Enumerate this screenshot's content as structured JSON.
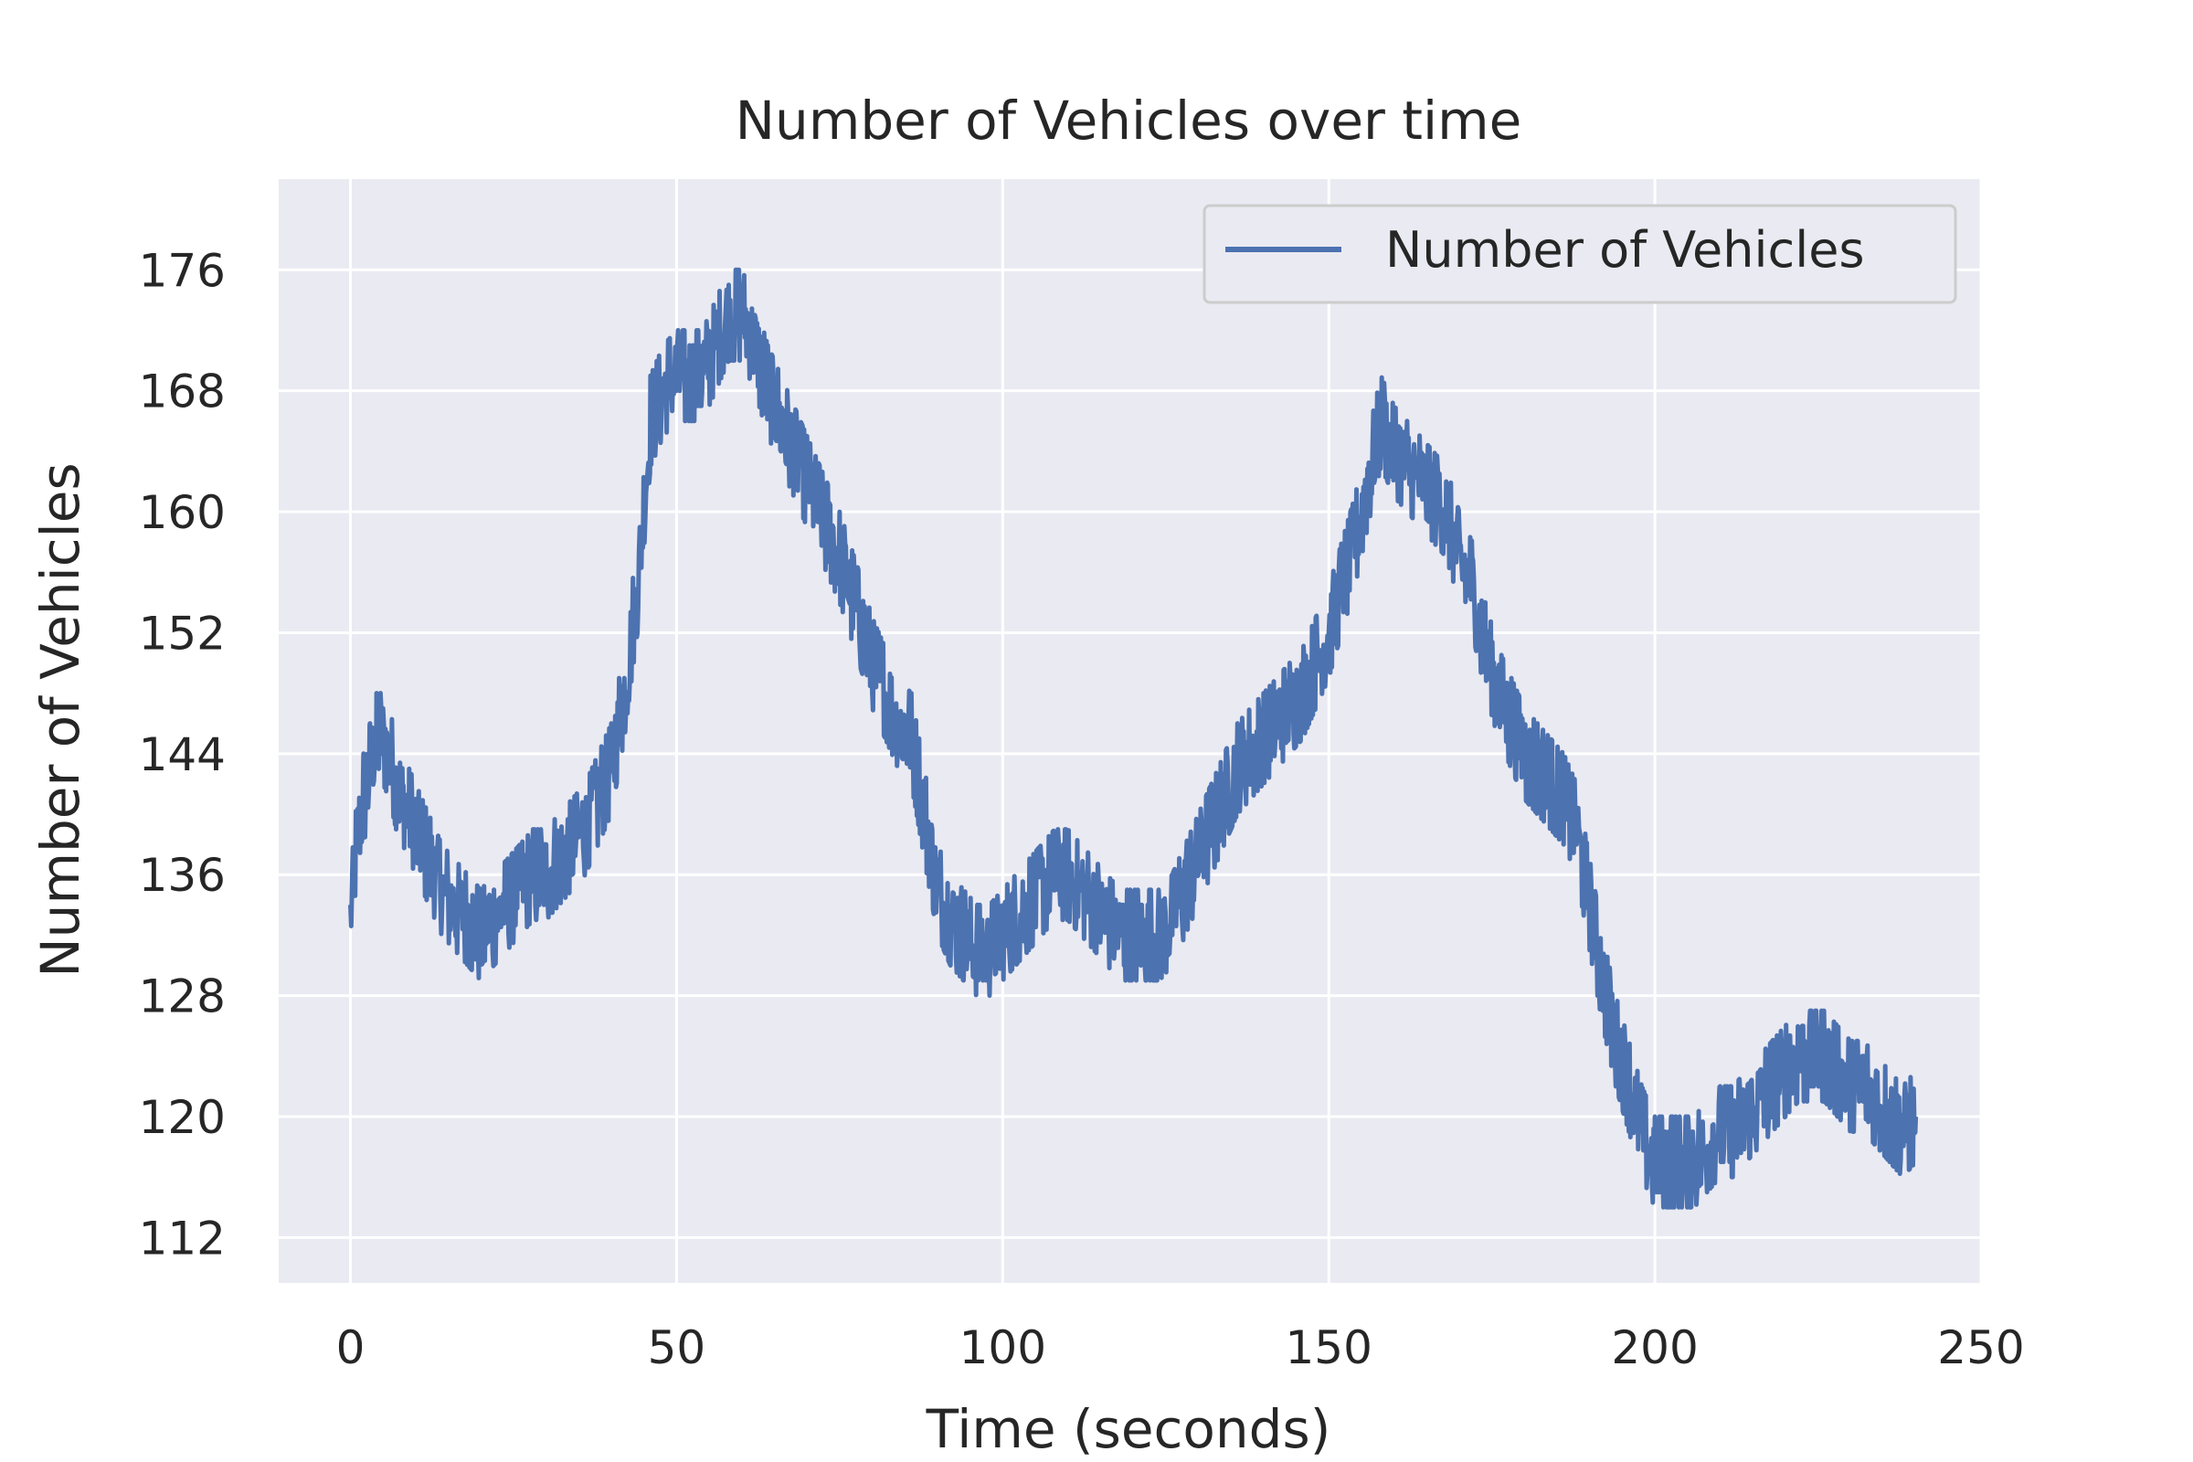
{
  "chart_data": {
    "type": "line",
    "title": "Number of Vehicles over time",
    "xlabel": "Time (seconds)",
    "ylabel": "Number of Vehicles",
    "xlim": [
      -11,
      250
    ],
    "ylim": [
      109,
      182
    ],
    "xticks": [
      0,
      50,
      100,
      150,
      200,
      250
    ],
    "yticks": [
      112,
      120,
      128,
      136,
      144,
      152,
      160,
      168,
      176
    ],
    "grid": true,
    "legend_position": "upper right",
    "series": [
      {
        "name": "Number of Vehicles",
        "color": "#4c72b0",
        "x": [
          0,
          1,
          2,
          3,
          4,
          5,
          6,
          7,
          8,
          9,
          10,
          12,
          14,
          16,
          18,
          20,
          22,
          24,
          26,
          28,
          30,
          32,
          34,
          36,
          38,
          40,
          42,
          44,
          46,
          48,
          50,
          52,
          54,
          56,
          58,
          60,
          62,
          64,
          66,
          68,
          70,
          72,
          75,
          78,
          80,
          82,
          84,
          86,
          88,
          90,
          92,
          94,
          96,
          98,
          100,
          102,
          104,
          106,
          108,
          110,
          112,
          114,
          116,
          118,
          120,
          122,
          124,
          126,
          128,
          130,
          132,
          134,
          136,
          138,
          140,
          142,
          144,
          146,
          148,
          150,
          152,
          154,
          156,
          158,
          160,
          162,
          164,
          166,
          168,
          170,
          172,
          174,
          176,
          178,
          180,
          182,
          184,
          186,
          188,
          190,
          192,
          194,
          196,
          198,
          200,
          202,
          204,
          206,
          208,
          210,
          212,
          214,
          216,
          218,
          220,
          222,
          224,
          226,
          228,
          230,
          232,
          234,
          236,
          238,
          240
        ],
        "y": [
          133,
          138,
          141,
          143,
          145,
          145,
          144,
          142,
          141,
          140,
          139,
          137,
          135,
          134,
          133,
          132,
          133,
          134,
          135,
          136,
          136,
          137,
          138,
          139,
          141,
          143,
          148,
          155,
          166,
          168,
          169,
          169,
          169,
          171,
          173,
          173,
          171,
          168,
          166,
          164,
          162,
          160,
          157,
          153,
          150,
          148,
          146,
          145,
          140,
          135,
          133,
          132,
          131,
          131,
          132,
          133,
          134,
          135,
          136,
          136,
          135,
          134,
          133,
          132,
          132,
          132,
          132,
          133,
          135,
          137,
          139,
          141,
          143,
          144,
          145,
          146,
          147,
          148,
          150,
          152,
          155,
          158,
          162,
          166,
          164,
          163,
          162,
          161,
          160,
          157,
          155,
          151,
          148,
          146,
          144,
          143,
          142,
          141,
          139,
          134,
          129,
          125,
          122,
          119,
          117,
          117,
          117,
          117,
          118,
          119,
          119,
          120,
          121,
          122,
          123,
          124,
          124,
          124,
          123,
          122,
          122,
          121,
          120,
          119,
          120
        ],
        "noise_amplitude": 3.5
      }
    ]
  }
}
